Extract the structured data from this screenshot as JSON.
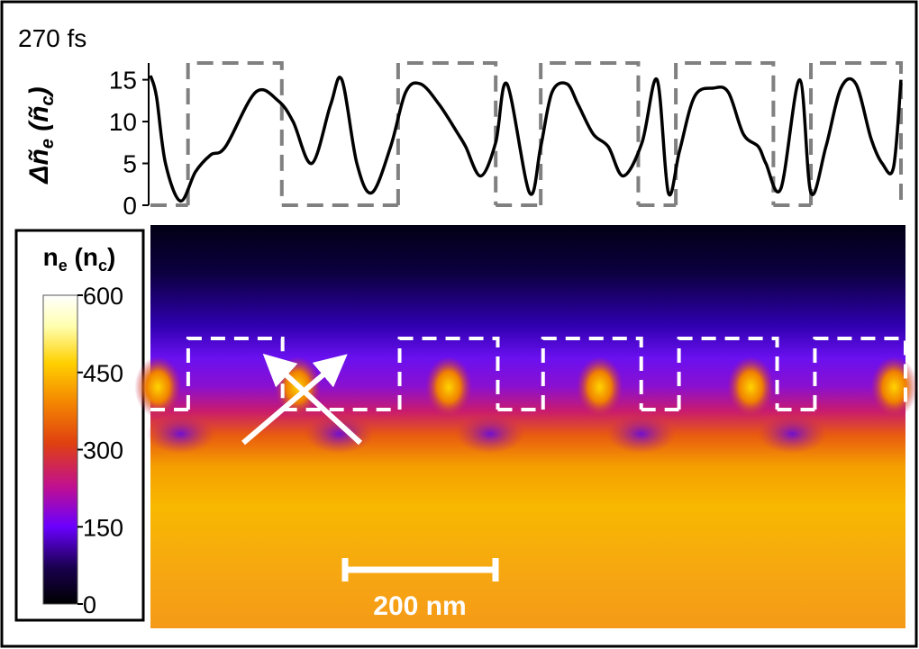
{
  "colors": {
    "profile_line": "#000000",
    "dashed": "#808080",
    "overlay_white": "#ffffff",
    "colormap": [
      "#000000",
      "#1a0050",
      "#6a00ff",
      "#c01090",
      "#e04010",
      "#f58a00",
      "#ffd000",
      "#ffffb0",
      "#ffffff"
    ]
  },
  "chart_data": [
    {
      "type": "line",
      "panel": "top",
      "title": "270 fs",
      "ylabel": "Δñ_e (ñ_c)",
      "ylabel_parts": {
        "prefix": "Δ",
        "main": "ñ",
        "main_sub": "e",
        "open": " (",
        "unit": "ñ",
        "unit_sub": "c",
        "close": ")"
      },
      "yticks": [
        0,
        5,
        10,
        15
      ],
      "ylim": [
        0,
        17
      ],
      "xlim": [
        0,
        1000
      ],
      "series": [
        {
          "x": [
            0,
            8,
            20,
            40,
            60,
            80,
            100,
            140,
            170,
            190,
            215,
            240,
            255,
            275,
            295,
            320,
            340,
            360,
            385,
            410,
            420,
            440,
            460,
            475,
            505,
            520,
            535,
            555,
            570,
            590,
            610,
            630,
            655,
            675,
            690,
            705,
            725,
            750,
            770,
            790,
            810,
            820,
            840,
            865,
            880,
            900,
            920,
            940,
            960,
            975,
            990,
            1000
          ],
          "y": [
            15.5,
            13,
            5,
            0.5,
            4,
            6,
            7,
            13.5,
            12.5,
            10,
            5,
            12,
            15,
            5,
            1.5,
            7,
            13.5,
            14.5,
            12,
            8.5,
            7,
            3.5,
            7.5,
            14.5,
            1.5,
            7,
            13.5,
            14.5,
            12,
            8.5,
            7,
            3.5,
            7.5,
            15,
            1.5,
            6.5,
            13,
            14,
            13.5,
            8.5,
            7,
            5,
            2,
            15,
            1.5,
            7,
            14,
            14.5,
            8,
            5,
            4.5,
            15
          ]
        }
      ],
      "dashed_boxes": {
        "levels": [
          0,
          17
        ],
        "segments_x": [
          [
            50,
            175
          ],
          [
            330,
            460
          ],
          [
            520,
            650
          ],
          [
            700,
            830
          ],
          [
            880,
            1000
          ]
        ]
      }
    },
    {
      "type": "heatmap",
      "panel": "bottom",
      "colorbar": {
        "label": "n_e (n_c)",
        "label_parts": {
          "main": "n",
          "main_sub": "e",
          "open": " (",
          "unit": "n",
          "unit_sub": "c",
          "close": ")"
        },
        "ticks": [
          0,
          150,
          300,
          450,
          600
        ],
        "range": [
          0,
          600
        ]
      },
      "scale_bar_label": "200 nm",
      "scale_bar_length_nm": 200
    }
  ]
}
